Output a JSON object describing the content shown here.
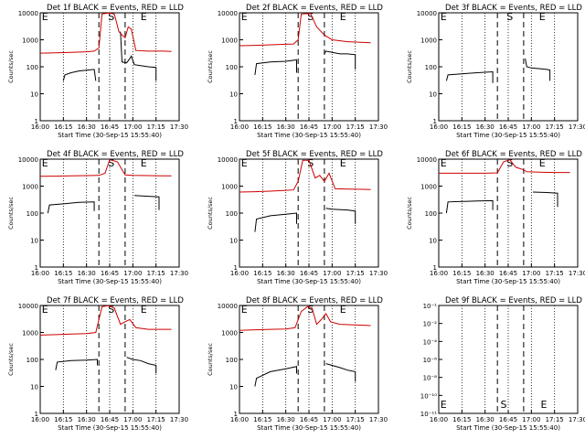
{
  "chart_data": [
    {
      "type": "line",
      "title": "Det 1f BLACK = Events, RED = LLD",
      "xlabel": "Start Time (30-Sep-15 15:55:40)",
      "ylabel": "Counts/sec",
      "yscale": "log",
      "ylim": [
        1,
        10000
      ],
      "xlim": [
        "16:00",
        "17:30"
      ],
      "x_ticks": [
        "16:00",
        "16:15",
        "16:30",
        "16:45",
        "17:00",
        "17:15",
        "17:30"
      ],
      "y_ticks": [
        "1",
        "10",
        "100",
        "1000",
        "10000"
      ],
      "markers": [
        "E",
        "S",
        "E"
      ],
      "series": [
        {
          "color": "#000000",
          "x": [
            "16:15",
            "16:16",
            "16:20",
            "16:25",
            "16:30",
            "16:35",
            "16:36",
            "16:36",
            "16:39",
            "16:50",
            "16:52",
            "16:53",
            "16:56",
            "16:58",
            "16:59",
            "17:01",
            "17:05",
            "17:10",
            "17:15",
            "17:15"
          ],
          "values": [
            30,
            50,
            60,
            70,
            75,
            80,
            30,
            null,
            2000,
            null,
            2000,
            150,
            140,
            200,
            250,
            120,
            110,
            100,
            95,
            30
          ]
        },
        {
          "color": "#cc0000",
          "x": [
            "16:00",
            "16:10",
            "16:20",
            "16:30",
            "16:35",
            "16:38",
            "16:40",
            "16:44",
            "16:48",
            "16:51",
            "16:53",
            "16:55",
            "16:57",
            "16:59",
            "17:02",
            "17:10",
            "17:20",
            "17:25"
          ],
          "values": [
            320,
            330,
            340,
            360,
            380,
            500,
            9000,
            9800,
            9000,
            2000,
            1500,
            1200,
            3000,
            2500,
            400,
            380,
            380,
            370
          ]
        }
      ]
    },
    {
      "type": "line",
      "title": "Det 2f BLACK = Events, RED = LLD",
      "xlabel": "Start Time (30-Sep-15 15:55:40)",
      "ylabel": "Counts/sec",
      "yscale": "log",
      "ylim": [
        1,
        10000
      ],
      "xlim": [
        "16:00",
        "17:30"
      ],
      "x_ticks": [
        "16:00",
        "16:15",
        "16:30",
        "16:45",
        "17:00",
        "17:15",
        "17:30"
      ],
      "y_ticks": [
        "1",
        "10",
        "100",
        "1000",
        "10000"
      ],
      "markers": [
        "E",
        "S",
        "E"
      ],
      "series": [
        {
          "color": "#000000",
          "x": [
            "16:10",
            "16:11",
            "16:20",
            "16:30",
            "16:37",
            "16:37",
            "16:40",
            "16:50",
            "16:55",
            "16:56",
            "17:00",
            "17:05",
            "17:10",
            "17:15",
            "17:15"
          ],
          "values": [
            50,
            130,
            150,
            160,
            180,
            60,
            null,
            null,
            300,
            380,
            340,
            300,
            300,
            280,
            80
          ]
        },
        {
          "color": "#cc0000",
          "x": [
            "16:00",
            "16:10",
            "16:20",
            "16:30",
            "16:35",
            "16:38",
            "16:40",
            "16:46",
            "16:50",
            "16:55",
            "17:00",
            "17:10",
            "17:20",
            "17:25"
          ],
          "values": [
            600,
            620,
            650,
            680,
            700,
            1000,
            9000,
            9500,
            3000,
            1500,
            1000,
            850,
            800,
            780
          ]
        }
      ]
    },
    {
      "type": "line",
      "title": "Det 3f BLACK = Events, RED = LLD",
      "xlabel": "Start Time (30-Sep-15 15:55:40)",
      "ylabel": "Counts/sec",
      "yscale": "log",
      "ylim": [
        1,
        10000
      ],
      "xlim": [
        "16:00",
        "17:30"
      ],
      "x_ticks": [
        "16:00",
        "16:15",
        "16:30",
        "16:45",
        "17:00",
        "17:15",
        "17:30"
      ],
      "y_ticks": [
        "1",
        "10",
        "100",
        "1000",
        "10000"
      ],
      "markers": [
        "E",
        "S",
        "E"
      ],
      "series": [
        {
          "color": "#000000",
          "x": [
            "16:05",
            "16:06",
            "16:15",
            "16:25",
            "16:35",
            "16:35",
            "16:55",
            "16:56",
            "16:57",
            "17:00",
            "17:10",
            "17:12",
            "17:12"
          ],
          "values": [
            30,
            50,
            55,
            60,
            65,
            25,
            null,
            200,
            100,
            90,
            80,
            75,
            30
          ]
        }
      ]
    },
    {
      "type": "line",
      "title": "Det 4f BLACK = Events, RED = LLD",
      "xlabel": "Start Time (30-Sep-15 15:55:40)",
      "ylabel": "Counts/sec",
      "yscale": "log",
      "ylim": [
        1,
        10000
      ],
      "xlim": [
        "16:00",
        "17:30"
      ],
      "x_ticks": [
        "16:00",
        "16:15",
        "16:30",
        "16:45",
        "17:00",
        "17:15",
        "17:30"
      ],
      "y_ticks": [
        "1",
        "10",
        "100",
        "1000",
        "10000"
      ],
      "markers": [
        "E",
        "S",
        "E"
      ],
      "series": [
        {
          "color": "#000000",
          "x": [
            "16:05",
            "16:06",
            "16:15",
            "16:25",
            "16:35",
            "16:35",
            "17:00",
            "17:01",
            "17:10",
            "17:17",
            "17:17"
          ],
          "values": [
            100,
            200,
            220,
            250,
            260,
            120,
            null,
            450,
            420,
            400,
            130
          ]
        },
        {
          "color": "#cc0000",
          "x": [
            "16:00",
            "16:10",
            "16:20",
            "16:30",
            "16:38",
            "16:42",
            "16:45",
            "16:50",
            "16:55",
            "17:00",
            "17:10",
            "17:20",
            "17:25"
          ],
          "values": [
            2300,
            2350,
            2400,
            2450,
            2500,
            3000,
            9500,
            8000,
            2600,
            2500,
            2450,
            2400,
            2400
          ]
        }
      ]
    },
    {
      "type": "line",
      "title": "Det 5f BLACK = Events, RED = LLD",
      "xlabel": "Start Time (30-Sep-15 15:55:40)",
      "ylabel": "Counts/sec",
      "yscale": "log",
      "ylim": [
        1,
        10000
      ],
      "xlim": [
        "16:00",
        "17:30"
      ],
      "x_ticks": [
        "16:00",
        "16:15",
        "16:30",
        "16:45",
        "17:00",
        "17:15",
        "17:30"
      ],
      "y_ticks": [
        "1",
        "10",
        "100",
        "1000",
        "10000"
      ],
      "markers": [
        "E",
        "S",
        "E"
      ],
      "series": [
        {
          "color": "#000000",
          "x": [
            "16:10",
            "16:11",
            "16:20",
            "16:30",
            "16:37",
            "16:37",
            "16:55",
            "16:56",
            "17:00",
            "17:10",
            "17:15",
            "17:15"
          ],
          "values": [
            20,
            60,
            80,
            90,
            100,
            40,
            null,
            150,
            140,
            130,
            120,
            40
          ]
        },
        {
          "color": "#cc0000",
          "x": [
            "16:00",
            "16:10",
            "16:20",
            "16:30",
            "16:35",
            "16:38",
            "16:41",
            "16:45",
            "16:49",
            "16:52",
            "16:55",
            "16:58",
            "17:02",
            "17:10",
            "17:20",
            "17:25"
          ],
          "values": [
            600,
            620,
            650,
            700,
            720,
            1500,
            9000,
            9000,
            2000,
            2500,
            1500,
            3000,
            800,
            780,
            760,
            750
          ]
        }
      ]
    },
    {
      "type": "line",
      "title": "Det 6f BLACK = Events, RED = LLD",
      "xlabel": "Start Time (30-Sep-15 15:55:40)",
      "ylabel": "Counts/sec",
      "yscale": "log",
      "ylim": [
        1,
        10000
      ],
      "xlim": [
        "16:00",
        "17:30"
      ],
      "x_ticks": [
        "16:00",
        "16:15",
        "16:30",
        "16:45",
        "17:00",
        "17:15",
        "17:30"
      ],
      "y_ticks": [
        "1",
        "10",
        "100",
        "1000",
        "10000"
      ],
      "markers": [
        "E",
        "S",
        "E"
      ],
      "series": [
        {
          "color": "#000000",
          "x": [
            "16:05",
            "16:06",
            "16:15",
            "16:25",
            "16:35",
            "16:35",
            "17:00",
            "17:01",
            "17:10",
            "17:17",
            "17:17"
          ],
          "values": [
            100,
            260,
            270,
            280,
            290,
            130,
            null,
            600,
            580,
            550,
            170
          ]
        },
        {
          "color": "#cc0000",
          "x": [
            "16:00",
            "16:10",
            "16:20",
            "16:30",
            "16:38",
            "16:42",
            "16:46",
            "16:50",
            "16:55",
            "16:57",
            "17:05",
            "17:15",
            "17:25"
          ],
          "values": [
            3000,
            3000,
            3000,
            3000,
            3100,
            8000,
            9500,
            5000,
            4000,
            3400,
            3300,
            3200,
            3200
          ]
        }
      ]
    },
    {
      "type": "line",
      "title": "Det 7f BLACK = Events, RED = LLD",
      "xlabel": "Start Time (30-Sep-15 15:55:40)",
      "ylabel": "Counts/sec",
      "yscale": "log",
      "ylim": [
        1,
        10000
      ],
      "xlim": [
        "16:00",
        "17:30"
      ],
      "x_ticks": [
        "16:00",
        "16:15",
        "16:30",
        "16:45",
        "17:00",
        "17:15",
        "17:30"
      ],
      "y_ticks": [
        "1",
        "10",
        "100",
        "1000",
        "10000"
      ],
      "markers": [
        "E",
        "S",
        "E"
      ],
      "series": [
        {
          "color": "#000000",
          "x": [
            "16:10",
            "16:11",
            "16:20",
            "16:30",
            "16:37",
            "16:37",
            "16:55",
            "16:56",
            "17:00",
            "17:05",
            "17:10",
            "17:15",
            "17:15"
          ],
          "values": [
            40,
            80,
            90,
            95,
            100,
            60,
            null,
            120,
            100,
            90,
            70,
            60,
            30
          ]
        },
        {
          "color": "#cc0000",
          "x": [
            "16:00",
            "16:10",
            "16:20",
            "16:30",
            "16:36",
            "16:40",
            "16:44",
            "16:48",
            "16:52",
            "16:55",
            "16:58",
            "17:02",
            "17:10",
            "17:20",
            "17:25"
          ],
          "values": [
            800,
            830,
            870,
            900,
            1000,
            9000,
            9800,
            8000,
            2000,
            2500,
            3000,
            1500,
            1300,
            1300,
            1300
          ]
        }
      ]
    },
    {
      "type": "line",
      "title": "Det 8f BLACK = Events, RED = LLD",
      "xlabel": "Start Time (30-Sep-15 15:55:40)",
      "ylabel": "Counts/sec",
      "yscale": "log",
      "ylim": [
        1,
        10000
      ],
      "xlim": [
        "16:00",
        "17:30"
      ],
      "x_ticks": [
        "16:00",
        "16:15",
        "16:30",
        "16:45",
        "17:00",
        "17:15",
        "17:30"
      ],
      "y_ticks": [
        "1",
        "10",
        "100",
        "1000",
        "10000"
      ],
      "markers": [
        "E",
        "S",
        "E"
      ],
      "series": [
        {
          "color": "#000000",
          "x": [
            "16:10",
            "16:11",
            "16:20",
            "16:30",
            "16:37",
            "16:37",
            "16:55",
            "16:56",
            "17:00",
            "17:05",
            "17:10",
            "17:15",
            "17:15"
          ],
          "values": [
            10,
            20,
            35,
            45,
            55,
            30,
            null,
            70,
            60,
            50,
            40,
            35,
            15
          ]
        },
        {
          "color": "#cc0000",
          "x": [
            "16:00",
            "16:10",
            "16:20",
            "16:30",
            "16:36",
            "16:40",
            "16:44",
            "16:47",
            "16:50",
            "16:53",
            "16:56",
            "16:59",
            "17:05",
            "17:15",
            "17:25"
          ],
          "values": [
            1200,
            1250,
            1300,
            1350,
            1500,
            6000,
            9000,
            8000,
            2000,
            3000,
            5000,
            2500,
            2000,
            1900,
            1800
          ]
        }
      ]
    },
    {
      "type": "line",
      "title": "Det 9f BLACK = Events, RED = LLD",
      "xlabel": "Start Time (30-Sep-15 15:55:40)",
      "ylabel": "",
      "yscale": "log",
      "ylim": [
        1e-11,
        0.1
      ],
      "xlim": [
        "16:00",
        "17:30"
      ],
      "x_ticks": [
        "16:00",
        "16:15",
        "16:30",
        "16:45",
        "17:00",
        "17:15",
        "17:30"
      ],
      "y_ticks": [
        "10⁻¹¹",
        "10⁻¹⁰",
        "10⁻⁸",
        "10⁻⁶",
        "10⁻⁴",
        "10⁻²",
        "10⁻¹"
      ],
      "markers": [
        "E",
        "S",
        "E"
      ],
      "series": []
    }
  ]
}
